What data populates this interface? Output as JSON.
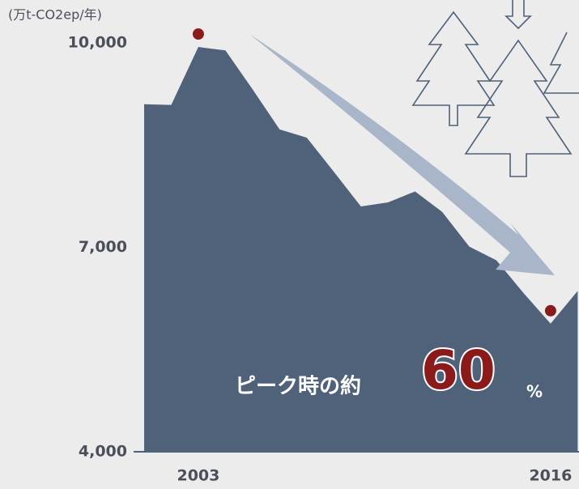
{
  "chart_data": {
    "type": "area",
    "y_unit": "(万t-CO2ep/年)",
    "categories": [
      null,
      null,
      "2003",
      null,
      null,
      null,
      null,
      null,
      null,
      null,
      null,
      null,
      null,
      null,
      null,
      "2016",
      null
    ],
    "values": [
      9100,
      9090,
      9940,
      9890,
      9320,
      8730,
      8610,
      8110,
      7600,
      7660,
      7820,
      7520,
      7010,
      6810,
      6330,
      5880,
      6360
    ],
    "color": "#4f627a",
    "marker_color": "#8b1a1a",
    "ylim": [
      4000,
      10000
    ],
    "yticks": [
      {
        "value": 4000,
        "label": "4,000"
      },
      {
        "value": 7000,
        "label": "7,000"
      },
      {
        "value": 10000,
        "label": "10,000"
      }
    ],
    "annotation": {
      "text": "ピーク時の約",
      "value": 60,
      "unit": "%"
    }
  }
}
